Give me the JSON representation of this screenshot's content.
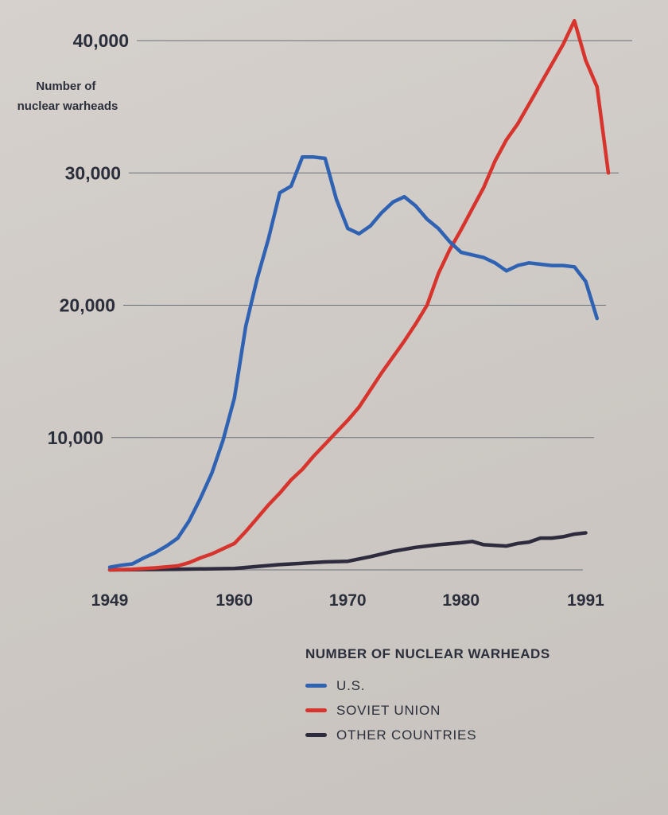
{
  "chart_data": {
    "type": "line",
    "ylabel": "Number of\nnuclear warheads",
    "ylim": [
      0,
      41000
    ],
    "y_ticks": [
      {
        "value": 10000,
        "label": "10,000"
      },
      {
        "value": 20000,
        "label": "20,000"
      },
      {
        "value": 30000,
        "label": "30,000"
      },
      {
        "value": 40000,
        "label": "40,000"
      }
    ],
    "x_ticks": [
      {
        "value": 1949,
        "label": "1949"
      },
      {
        "value": 1960,
        "label": "1960"
      },
      {
        "value": 1970,
        "label": "1970"
      },
      {
        "value": 1980,
        "label": "1980"
      },
      {
        "value": 1991,
        "label": "1991"
      }
    ],
    "grid": true,
    "legend_title": "NUMBER OF NUCLEAR WARHEADS",
    "legend_position": "bottom",
    "series": [
      {
        "name": "U.S.",
        "color": "#2f62b3",
        "x": [
          1949,
          1950,
          1951,
          1952,
          1953,
          1954,
          1955,
          1956,
          1957,
          1958,
          1959,
          1960,
          1961,
          1962,
          1963,
          1964,
          1965,
          1966,
          1967,
          1968,
          1969,
          1970,
          1971,
          1972,
          1973,
          1974,
          1975,
          1976,
          1977,
          1978,
          1979,
          1980,
          1981,
          1982,
          1983,
          1984,
          1985,
          1986,
          1987,
          1988,
          1989,
          1990,
          1991,
          1992
        ],
        "values": [
          200,
          350,
          450,
          900,
          1300,
          1800,
          2400,
          3700,
          5400,
          7300,
          9800,
          13000,
          18400,
          22000,
          25000,
          28500,
          29000,
          31200,
          31200,
          31100,
          28000,
          25800,
          25400,
          26000,
          27000,
          27800,
          28200,
          27500,
          26500,
          25800,
          24800,
          24000,
          23800,
          23600,
          23200,
          22600,
          23000,
          23200,
          23100,
          23000,
          23000,
          22900,
          21800,
          19000
        ]
      },
      {
        "name": "SOVIET UNION",
        "color": "#d7342e",
        "x": [
          1949,
          1951,
          1953,
          1955,
          1956,
          1957,
          1958,
          1959,
          1960,
          1961,
          1962,
          1963,
          1964,
          1965,
          1966,
          1967,
          1968,
          1969,
          1970,
          1971,
          1972,
          1973,
          1974,
          1975,
          1976,
          1977,
          1978,
          1979,
          1980,
          1981,
          1982,
          1983,
          1984,
          1985,
          1986,
          1987,
          1988,
          1989,
          1990,
          1991,
          1992,
          1993
        ],
        "values": [
          0,
          50,
          150,
          300,
          550,
          900,
          1200,
          1600,
          2000,
          2900,
          3900,
          4900,
          5800,
          6800,
          7600,
          8600,
          9500,
          10400,
          11300,
          12300,
          13600,
          14900,
          16100,
          17300,
          18600,
          20000,
          22400,
          24200,
          25700,
          27300,
          28900,
          30900,
          32500,
          33700,
          35200,
          36700,
          38200,
          39700,
          41500,
          38500,
          36500,
          30000
        ]
      },
      {
        "name": "OTHER COUNTRIES",
        "color": "#2d2b3d",
        "x": [
          1949,
          1955,
          1960,
          1962,
          1964,
          1966,
          1968,
          1970,
          1972,
          1974,
          1976,
          1978,
          1980,
          1981,
          1982,
          1983,
          1984,
          1985,
          1986,
          1987,
          1988,
          1989,
          1990,
          1991
        ],
        "values": [
          0,
          50,
          100,
          250,
          400,
          500,
          600,
          650,
          1000,
          1400,
          1700,
          1900,
          2050,
          2150,
          1900,
          1850,
          1800,
          2000,
          2100,
          2400,
          2400,
          2500,
          2700,
          2800
        ]
      }
    ]
  }
}
